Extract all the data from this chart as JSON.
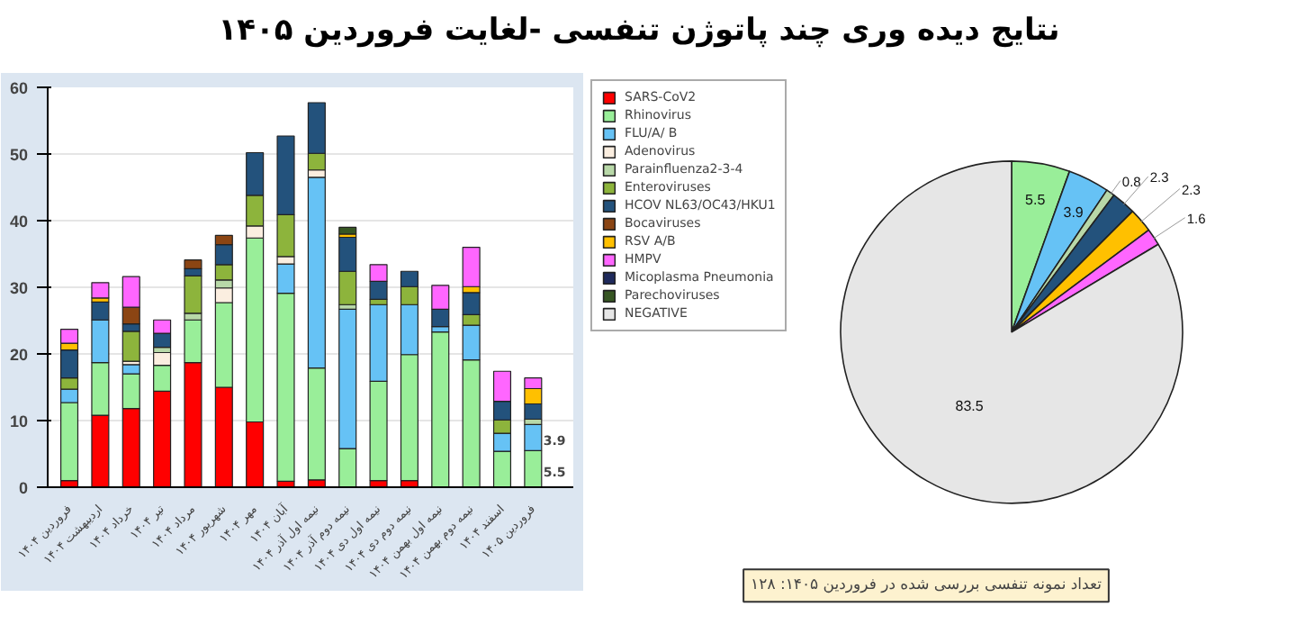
{
  "chart_data": [
    {
      "type": "bar",
      "stacked": true,
      "title": "نتایج دیده وری چند پاتوژن تنفسی -لغایت فروردین ۱۴۰۵",
      "categories": [
        "فروردین ۱۴۰۴",
        "اردیبهشت ۱۴۰۴",
        "خرداد ۱۴۰۴",
        "تیر ۱۴۰۴",
        "مرداد ۱۴۰۴",
        "شهریور ۱۴۰۴",
        "مهر ۱۴۰۴",
        "آبان ۱۴۰۴",
        "نیمه اول آذر ۱۴۰۴",
        "نیمه دوم آذر ۱۴۰۴",
        "نیمه اول دی ۱۴۰۴",
        "نیمه دوم دی ۱۴۰۴",
        "نیمه اول بهمن ۱۴۰۴",
        "نیمه دوم بهمن ۱۴۰۴",
        "اسفند ۱۴۰۴",
        "فروردین ۱۴۰۵"
      ],
      "ylim": [
        0,
        60
      ],
      "yticks": [
        0,
        10,
        20,
        30,
        40,
        50,
        60
      ],
      "grid": "y",
      "annotations": [
        {
          "text": "5.5",
          "x": "فروردین ۱۴۰۵",
          "y": 2.4
        },
        {
          "text": "3.9",
          "x": "فروردین ۱۴۰۵",
          "y": 7.2
        }
      ],
      "series": [
        {
          "color": "#ff0000",
          "values": [
            1,
            10.8,
            11.8,
            14.4,
            18.7,
            15,
            9.8,
            0.9,
            1.1,
            null,
            1,
            1,
            null,
            null,
            null,
            null
          ]
        },
        {
          "color": "#99ee99",
          "values": [
            11.7,
            7.9,
            5.2,
            3.9,
            6.4,
            12.7,
            27.6,
            28.2,
            16.8,
            5.8,
            14.9,
            18.9,
            23.3,
            19.1,
            5.4,
            5.5
          ]
        },
        {
          "color": "#66c2f5",
          "values": [
            2,
            6.4,
            1.4,
            null,
            null,
            null,
            null,
            4.4,
            28.6,
            20.9,
            11.5,
            7.5,
            0.8,
            5.2,
            2.7,
            3.9
          ]
        },
        {
          "color": "#fbeee0",
          "values": [
            null,
            null,
            0.5,
            1.9,
            null,
            2.2,
            1.8,
            1.1,
            1.1,
            null,
            null,
            null,
            null,
            null,
            null,
            null
          ]
        },
        {
          "color": "#b8d8a8",
          "values": [
            null,
            null,
            null,
            0.8,
            1,
            1.2,
            null,
            null,
            null,
            0.7,
            null,
            null,
            null,
            null,
            null,
            0.8
          ]
        },
        {
          "color": "#8db43c",
          "values": [
            1.7,
            null,
            4.5,
            null,
            5.6,
            2.3,
            4.6,
            6.3,
            2.5,
            5,
            0.8,
            2.7,
            null,
            1.6,
            2,
            null
          ]
        },
        {
          "color": "#23527c",
          "values": [
            4.2,
            2.7,
            1.1,
            2.1,
            1.1,
            3,
            6.4,
            11.8,
            7.6,
            5.1,
            2.7,
            2.3,
            2.6,
            3.3,
            2.8,
            2.3
          ]
        },
        {
          "color": "#8b4513",
          "values": [
            null,
            null,
            2.5,
            null,
            1.3,
            1.4,
            null,
            null,
            null,
            null,
            null,
            null,
            null,
            null,
            null,
            null
          ]
        },
        {
          "color": "#ffc000",
          "values": [
            1,
            0.6,
            null,
            null,
            null,
            null,
            null,
            null,
            null,
            0.5,
            null,
            null,
            null,
            0.9,
            null,
            2.3
          ]
        },
        {
          "color": "#ff66ff",
          "values": [
            2.1,
            2.3,
            4.6,
            2,
            null,
            null,
            null,
            null,
            null,
            null,
            2.5,
            null,
            3.6,
            5.9,
            4.5,
            1.6
          ]
        },
        {
          "color": "#375623",
          "values": [
            null,
            null,
            null,
            null,
            null,
            null,
            null,
            null,
            null,
            1,
            null,
            null,
            null,
            null,
            null,
            null
          ]
        }
      ]
    },
    {
      "type": "pie",
      "data_labels": true,
      "legend": "left",
      "categories": [
        "SARS-CoV2",
        "Rhinovirus",
        "FLU/A/ B",
        "Adenovirus",
        "Parainfluenza2-3-4",
        "Enteroviruses",
        "HCOV NL63/OC43/HKU1",
        "Bocaviruses",
        "RSV A/B",
        "HMPV",
        "Micoplasma Pneumonia",
        "Parechoviruses",
        "NEGATIVE"
      ],
      "values": [
        null,
        5.5,
        3.9,
        null,
        0.8,
        null,
        2.3,
        null,
        2.3,
        1.6,
        null,
        null,
        83.5
      ],
      "colors": [
        "#ff0000",
        "#99ee99",
        "#66c2f5",
        "#fbeee0",
        "#b8d8a8",
        "#8db43c",
        "#23527c",
        "#8b4513",
        "#ffc000",
        "#ff66ff",
        "#1f2a5c",
        "#375623",
        "#e6e6e6"
      ],
      "annotations": [
        "تعداد نمونه تنفسی بررسی شده در فروردین ۱۴۰۵: ۱۲۸"
      ]
    }
  ]
}
